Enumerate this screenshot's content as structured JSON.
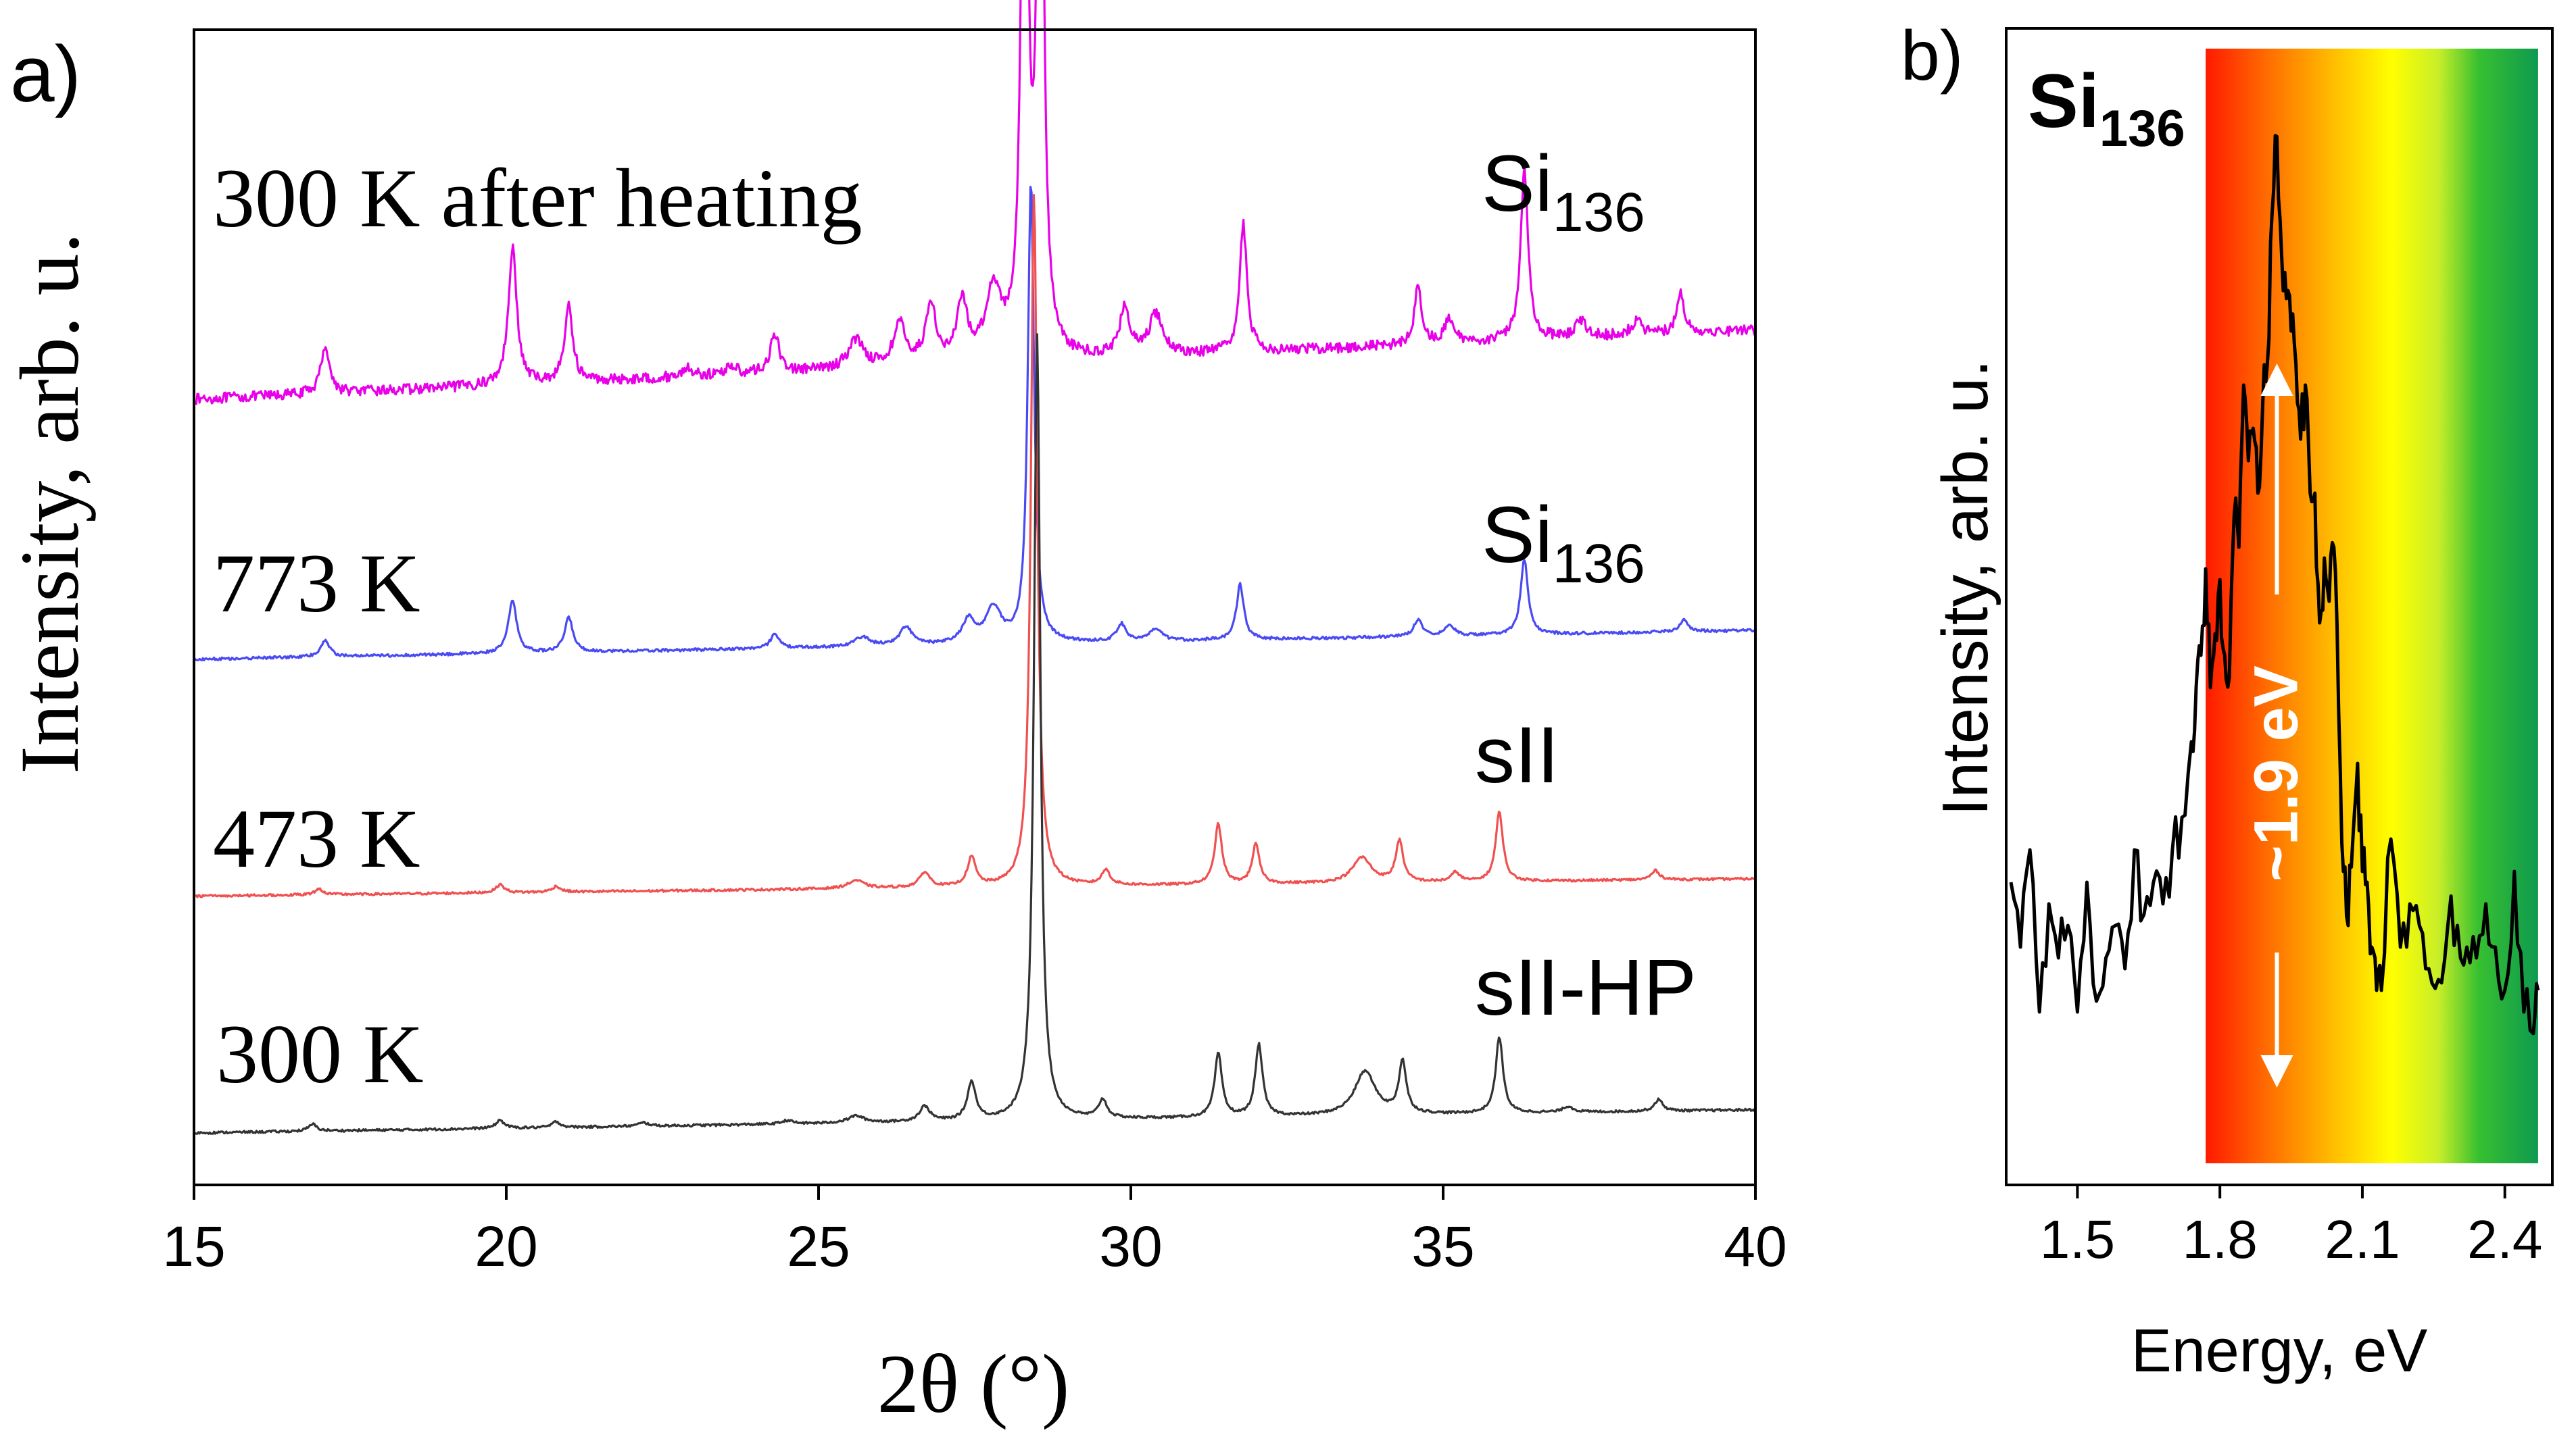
{
  "chart_data": [
    {
      "panel_label": "a)",
      "type": "line",
      "xlabel": "2θ (°)",
      "ylabel": "Intensity, arb. u.",
      "xlim": [
        15,
        40
      ],
      "ylim": [
        0,
        100
      ],
      "x_ticks": [
        15,
        20,
        25,
        30,
        35,
        40
      ],
      "x_tick_labels": [
        "15",
        "20",
        "25",
        "30",
        "35",
        "40"
      ],
      "grid": false,
      "series": [
        {
          "name": "300 K after heating",
          "phase_label": "Si",
          "phase_label_sub": "136",
          "color": "#e800e8",
          "baseline_start": 68,
          "baseline_end": 74,
          "noise": 0.45,
          "peaks": [
            [
              17.1,
              4.2,
              0.08
            ],
            [
              20.1,
              12,
              0.08
            ],
            [
              21.0,
              6.5,
              0.08
            ],
            [
              22.9,
              0.8,
              0.1
            ],
            [
              23.6,
              0.8,
              0.1
            ],
            [
              24.3,
              3.2,
              0.09
            ],
            [
              25.6,
              2.5,
              0.15
            ],
            [
              26.3,
              3.5,
              0.12
            ],
            [
              26.8,
              5.0,
              0.1
            ],
            [
              27.3,
              5.0,
              0.1
            ],
            [
              27.8,
              6.0,
              0.15
            ],
            [
              28.3,
              62,
              0.06
            ],
            [
              28.55,
              62,
              0.06
            ],
            [
              29.9,
              4.0,
              0.1
            ],
            [
              30.4,
              3.5,
              0.13
            ],
            [
              31.8,
              11,
              0.07
            ],
            [
              34.6,
              5.0,
              0.07
            ],
            [
              35.1,
              2.0,
              0.09
            ],
            [
              36.3,
              15,
              0.07
            ],
            [
              37.2,
              1.5,
              0.1
            ],
            [
              38.1,
              1.2,
              0.1
            ],
            [
              38.8,
              3.5,
              0.07
            ]
          ]
        },
        {
          "name": "773 K",
          "phase_label": "Si",
          "phase_label_sub": "136",
          "color": "#4a4af4",
          "baseline_start": 45.5,
          "baseline_end": 48,
          "noise": 0.12,
          "peaks": [
            [
              17.1,
              1.5,
              0.08
            ],
            [
              20.1,
              4.6,
              0.08
            ],
            [
              21.0,
              3.0,
              0.08
            ],
            [
              24.3,
              1.3,
              0.08
            ],
            [
              25.7,
              0.8,
              0.15
            ],
            [
              26.4,
              1.6,
              0.12
            ],
            [
              27.4,
              2.0,
              0.12
            ],
            [
              27.8,
              3.0,
              0.15
            ],
            [
              28.4,
              40,
              0.06
            ],
            [
              29.85,
              1.5,
              0.09
            ],
            [
              30.4,
              1.0,
              0.12
            ],
            [
              31.75,
              4.8,
              0.07
            ],
            [
              34.6,
              1.5,
              0.08
            ],
            [
              35.1,
              1.0,
              0.09
            ],
            [
              36.3,
              6.5,
              0.07
            ],
            [
              38.85,
              1.0,
              0.08
            ]
          ]
        },
        {
          "name": "473 K",
          "phase_label": "sII",
          "phase_label_sub": "",
          "color": "#f05050",
          "baseline_start": 25,
          "baseline_end": 26.5,
          "noise": 0.1,
          "peaks": [
            [
              17.0,
              0.5,
              0.08
            ],
            [
              19.9,
              0.7,
              0.08
            ],
            [
              20.8,
              0.5,
              0.08
            ],
            [
              25.6,
              0.7,
              0.15
            ],
            [
              26.7,
              1.3,
              0.1
            ],
            [
              27.45,
              2.5,
              0.08
            ],
            [
              28.45,
              60,
              0.06
            ],
            [
              29.6,
              1.3,
              0.08
            ],
            [
              31.4,
              5.2,
              0.07
            ],
            [
              32.0,
              3.4,
              0.07
            ],
            [
              33.7,
              2.2,
              0.18
            ],
            [
              34.3,
              3.6,
              0.07
            ],
            [
              35.2,
              0.8,
              0.08
            ],
            [
              35.9,
              6.0,
              0.07
            ],
            [
              38.4,
              0.8,
              0.08
            ]
          ]
        },
        {
          "name": "300 K",
          "phase_label": "sII-HP",
          "phase_label_sub": "",
          "color": "#333333",
          "baseline_start": 4.5,
          "baseline_end": 6.5,
          "noise": 0.1,
          "peaks": [
            [
              16.9,
              0.6,
              0.08
            ],
            [
              19.9,
              0.7,
              0.08
            ],
            [
              20.8,
              0.5,
              0.08
            ],
            [
              22.2,
              0.3,
              0.1
            ],
            [
              24.5,
              0.3,
              0.1
            ],
            [
              25.6,
              0.6,
              0.15
            ],
            [
              26.7,
              1.3,
              0.1
            ],
            [
              27.45,
              3.3,
              0.08
            ],
            [
              28.5,
              68,
              0.06
            ],
            [
              29.55,
              1.6,
              0.08
            ],
            [
              31.4,
              5.5,
              0.07
            ],
            [
              32.05,
              6.2,
              0.07
            ],
            [
              33.75,
              3.8,
              0.2
            ],
            [
              34.35,
              4.5,
              0.07
            ],
            [
              35.9,
              6.6,
              0.07
            ],
            [
              37.0,
              0.5,
              0.1
            ],
            [
              38.45,
              1.0,
              0.08
            ]
          ]
        }
      ]
    },
    {
      "panel_label": "b)",
      "type": "line",
      "title": "Si",
      "title_sub": "136",
      "xlabel": "Energy, eV",
      "ylabel": "Intensity, arb. u.",
      "xlim": [
        1.35,
        2.5
      ],
      "ylim": [
        0,
        100
      ],
      "x_ticks": [
        1.5,
        1.8,
        2.1,
        2.4
      ],
      "x_tick_labels": [
        "1.5",
        "1.8",
        "2.1",
        "2.4"
      ],
      "grid": false,
      "annotation": "~1.9 eV",
      "spectrum_band": {
        "x_start": 1.77,
        "x_end": 2.47,
        "colors": [
          "#ff1a00",
          "#ff7a00",
          "#ffc800",
          "#ffff00",
          "#c8ee28",
          "#38c030",
          "#10a848"
        ]
      },
      "arrow": {
        "x": 1.92,
        "y_from": 5,
        "y_to": 72
      },
      "series": [
        {
          "name": "Si136 spectrum",
          "color": "#000000",
          "x": [
            1.36,
            1.38,
            1.4,
            1.42,
            1.44,
            1.46,
            1.48,
            1.5,
            1.52,
            1.54,
            1.56,
            1.58,
            1.6,
            1.62,
            1.64,
            1.66,
            1.68,
            1.7,
            1.72,
            1.74,
            1.75,
            1.76,
            1.77,
            1.78,
            1.79,
            1.8,
            1.81,
            1.82,
            1.83,
            1.84,
            1.85,
            1.86,
            1.87,
            1.88,
            1.89,
            1.9,
            1.91,
            1.92,
            1.93,
            1.94,
            1.95,
            1.96,
            1.97,
            1.98,
            1.99,
            2.0,
            2.01,
            2.02,
            2.03,
            2.04,
            2.05,
            2.06,
            2.07,
            2.08,
            2.09,
            2.1,
            2.11,
            2.12,
            2.13,
            2.14,
            2.16,
            2.18,
            2.2,
            2.22,
            2.24,
            2.26,
            2.28,
            2.3,
            2.32,
            2.34,
            2.36,
            2.38,
            2.4,
            2.42,
            2.44,
            2.46,
            2.47
          ],
          "y": [
            24,
            18,
            27,
            12,
            22,
            17,
            20,
            12,
            24,
            13,
            17,
            20,
            16,
            27,
            21,
            24,
            22,
            27,
            30,
            37,
            42,
            45,
            53,
            42,
            47,
            52,
            45,
            43,
            58,
            55,
            70,
            63,
            66,
            60,
            68,
            72,
            86,
            93,
            82,
            78,
            75,
            72,
            65,
            70,
            60,
            60,
            48,
            54,
            50,
            55,
            40,
            25,
            20,
            28,
            35,
            25,
            24,
            18,
            14,
            14,
            28,
            18,
            22,
            20,
            16,
            15,
            20,
            20,
            18,
            17,
            22,
            18,
            14,
            25,
            12,
            10,
            14
          ]
        }
      ]
    }
  ]
}
